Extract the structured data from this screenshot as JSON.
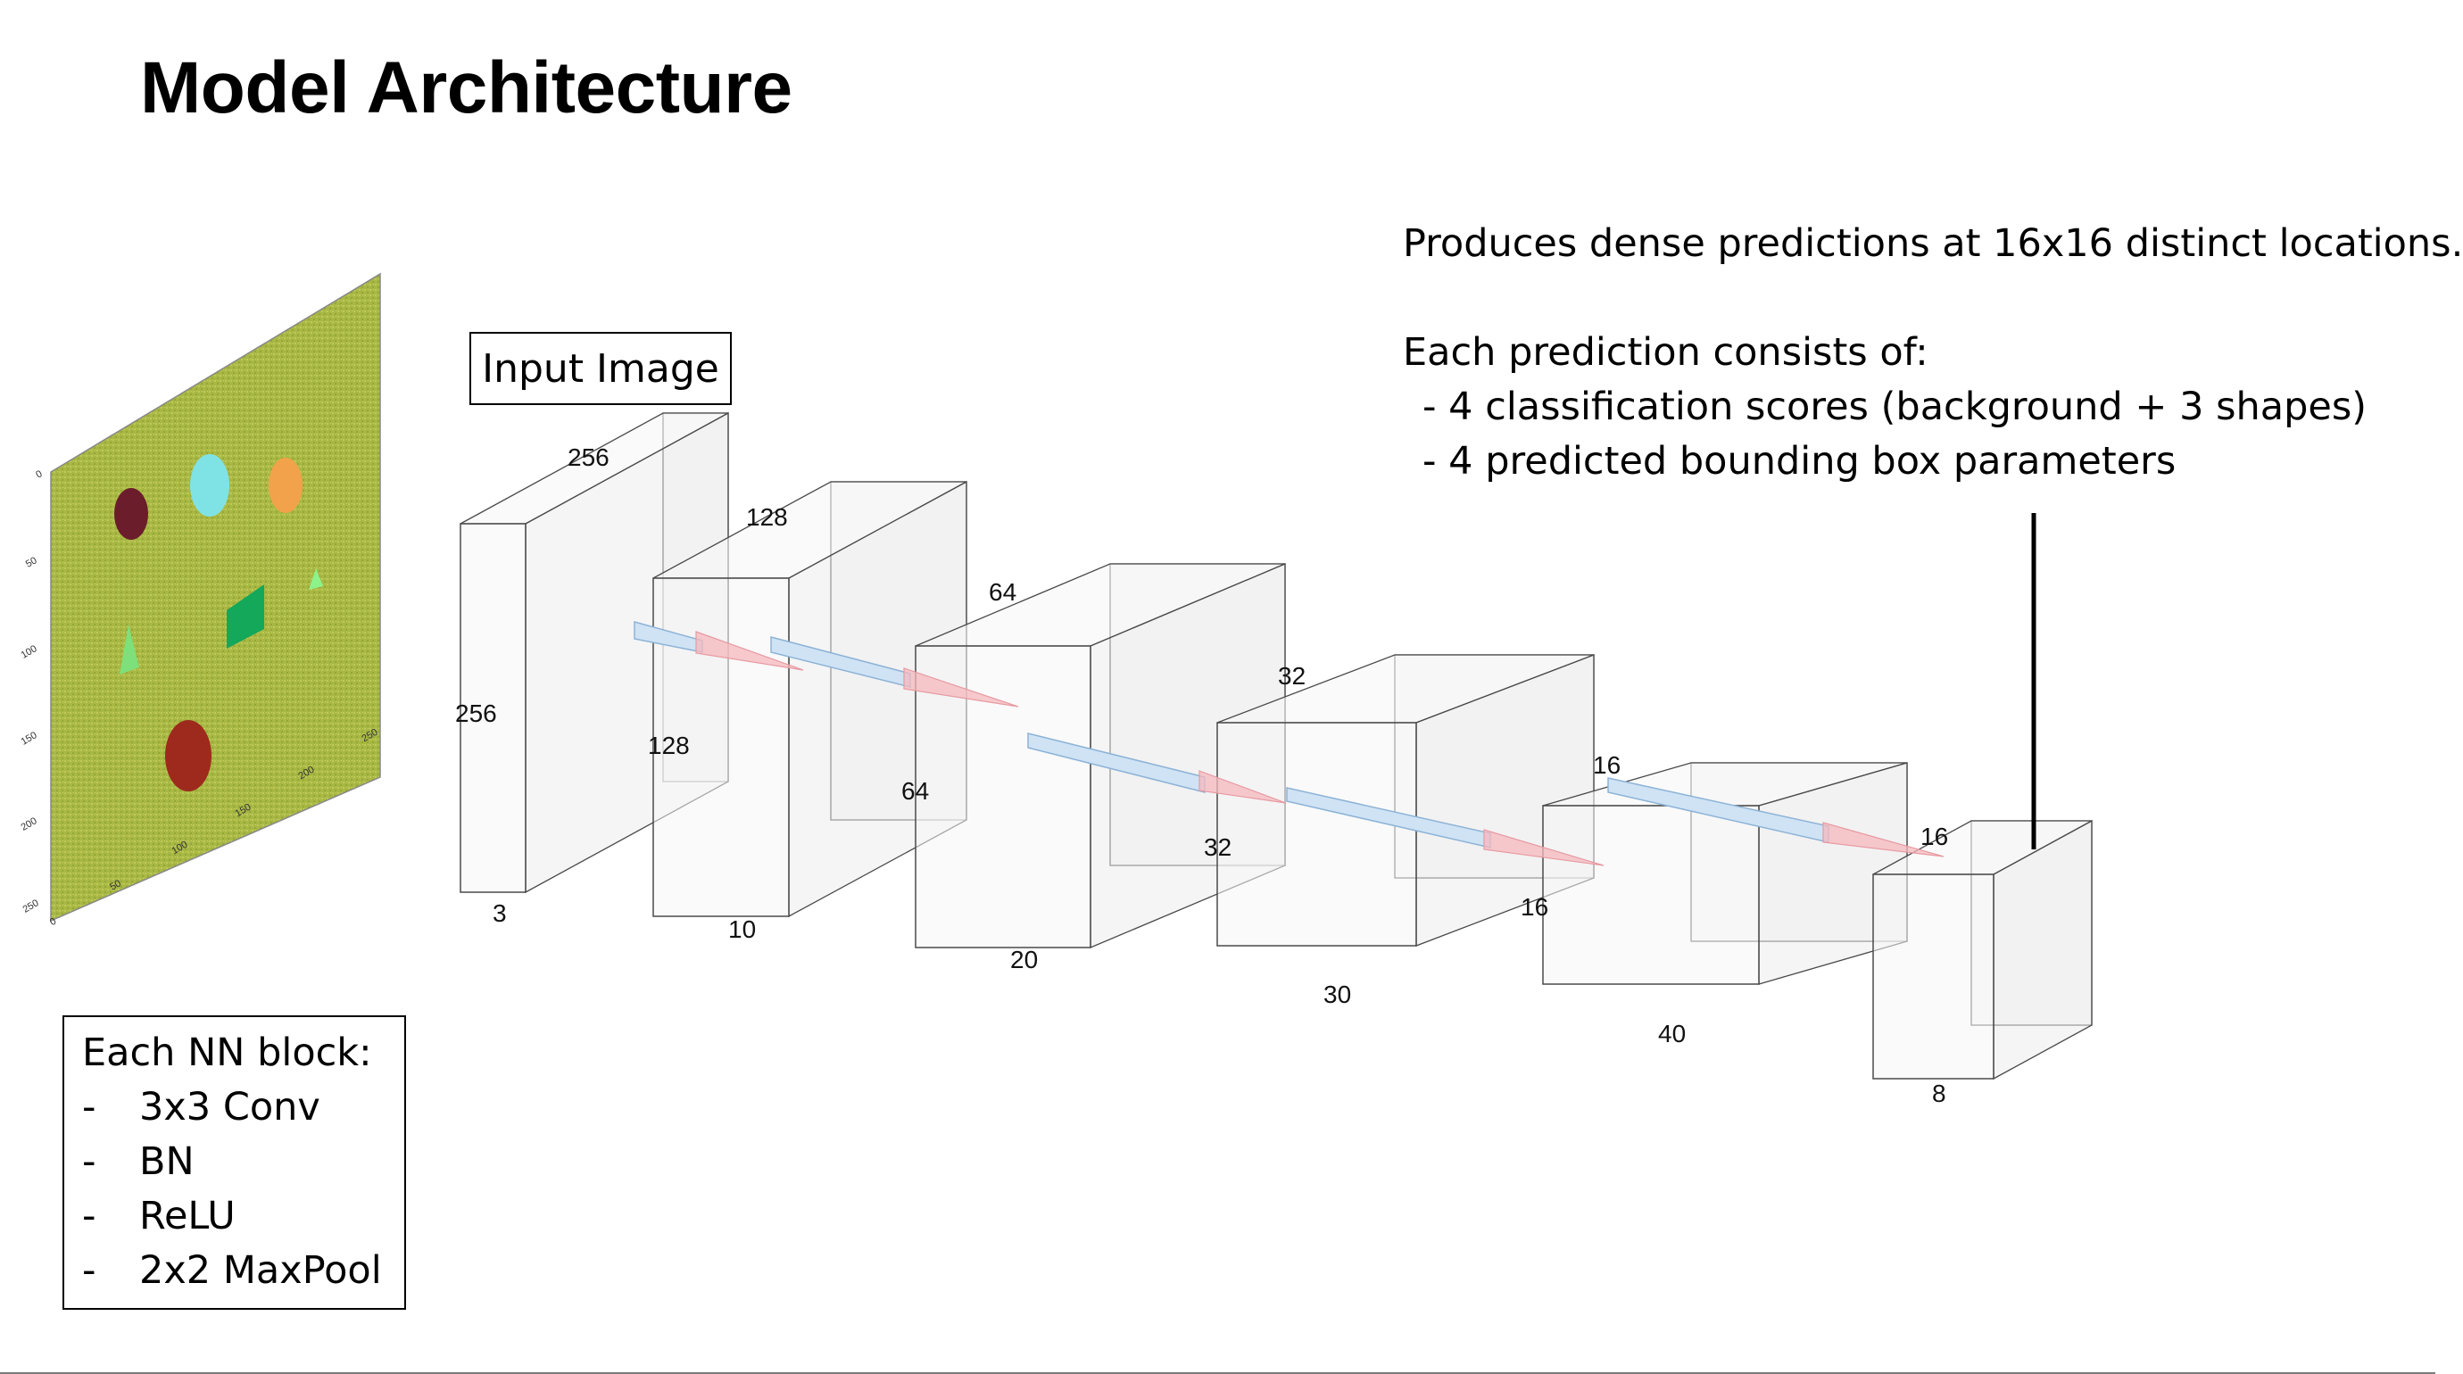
{
  "title": "Model Architecture",
  "input_label": "Input Image",
  "note": {
    "lines": [
      "Produces dense predictions at 16x16 distinct locations.",
      "",
      "Each prediction consists of:",
      "- 4 classification scores (background + 3 shapes)",
      "- 4 predicted bounding box parameters"
    ]
  },
  "nn_block": {
    "title": "Each NN block:",
    "items": [
      {
        "dash": "-",
        "text": "3x3 Conv"
      },
      {
        "dash": "-",
        "text": "BN"
      },
      {
        "dash": "-",
        "text": "ReLU"
      },
      {
        "dash": "-",
        "text": "2x2 MaxPool"
      }
    ]
  },
  "layers": [
    {
      "width_label": "256",
      "height_label": "256",
      "depth_label": "3"
    },
    {
      "width_label": "128",
      "height_label": "128",
      "depth_label": "10"
    },
    {
      "width_label": "64",
      "height_label": "64",
      "depth_label": "20"
    },
    {
      "width_label": "32",
      "height_label": "32",
      "depth_label": "30"
    },
    {
      "width_label": "16",
      "height_label": "16",
      "depth_label": "40"
    },
    {
      "width_label": "16",
      "height_label": "",
      "depth_label": "8"
    }
  ],
  "input_plot": {
    "y_ticks": [
      "0",
      "50",
      "100",
      "150",
      "200",
      "250"
    ],
    "x_ticks": [
      "0",
      "50",
      "100",
      "150",
      "200",
      "250"
    ],
    "shapes": [
      {
        "kind": "ellipse",
        "color": "#6b1d2c"
      },
      {
        "kind": "ellipse",
        "color": "#7fe3e6"
      },
      {
        "kind": "ellipse",
        "color": "#f2a24a"
      },
      {
        "kind": "triangle",
        "color": "#7ee07a"
      },
      {
        "kind": "diamond",
        "color": "#13a85a"
      },
      {
        "kind": "triangle",
        "color": "#8df28a"
      },
      {
        "kind": "ellipse",
        "color": "#9d2a1d"
      }
    ],
    "background_color": "#a8b843"
  },
  "colors": {
    "box_stroke": "#4a4a4a",
    "box_fill": "#f2f2f2",
    "kernel_blue": "#cfe3f5",
    "kernel_red": "#f6b8bd"
  }
}
